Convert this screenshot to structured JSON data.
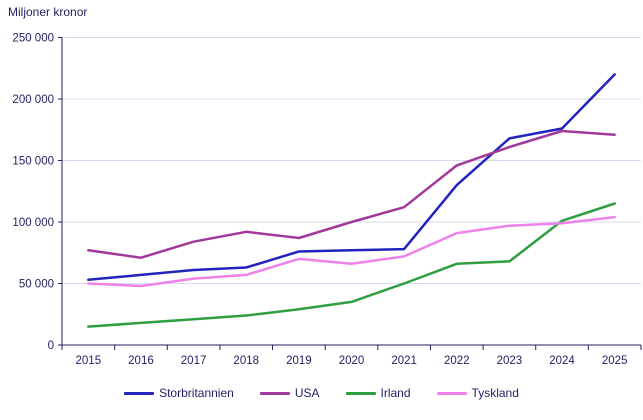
{
  "title": "Miljoner kronor",
  "colors": {
    "axis_text": "#1f1f62",
    "axis_line": "#1f1f62",
    "gridline": "#d9d9ef",
    "background": "#ffffff"
  },
  "chart_data": {
    "type": "line",
    "title": "Miljoner kronor",
    "categories": [
      "2015",
      "2016",
      "2017",
      "2018",
      "2019",
      "2020",
      "2021",
      "2022",
      "2023",
      "2024",
      "2025"
    ],
    "series": [
      {
        "name": "Storbritannien",
        "color": "#2323bd",
        "values": [
          53000,
          57000,
          61000,
          63000,
          76000,
          77000,
          78000,
          130000,
          168000,
          176000,
          220000
        ]
      },
      {
        "name": "USA",
        "color": "#a0399b",
        "values": [
          77000,
          71000,
          84000,
          92000,
          87000,
          100000,
          112000,
          146000,
          161000,
          174000,
          171000
        ]
      },
      {
        "name": "Irland",
        "color": "#2f9e41",
        "values": [
          15000,
          18000,
          21000,
          24000,
          29000,
          35000,
          50000,
          66000,
          68000,
          101000,
          115000
        ]
      },
      {
        "name": "Tyskland",
        "color": "#ef82ea",
        "values": [
          50000,
          48000,
          54000,
          57000,
          70000,
          66000,
          72000,
          91000,
          97000,
          99000,
          104000
        ]
      }
    ],
    "ylabel": "Miljoner kronor",
    "xlabel": "",
    "ylim": [
      0,
      250000
    ],
    "y_tick_step": 50000,
    "y_tick_labels": [
      "0",
      "50 000",
      "100 000",
      "150 000",
      "200 000",
      "250 000"
    ],
    "grid": true,
    "legend_position": "bottom"
  }
}
